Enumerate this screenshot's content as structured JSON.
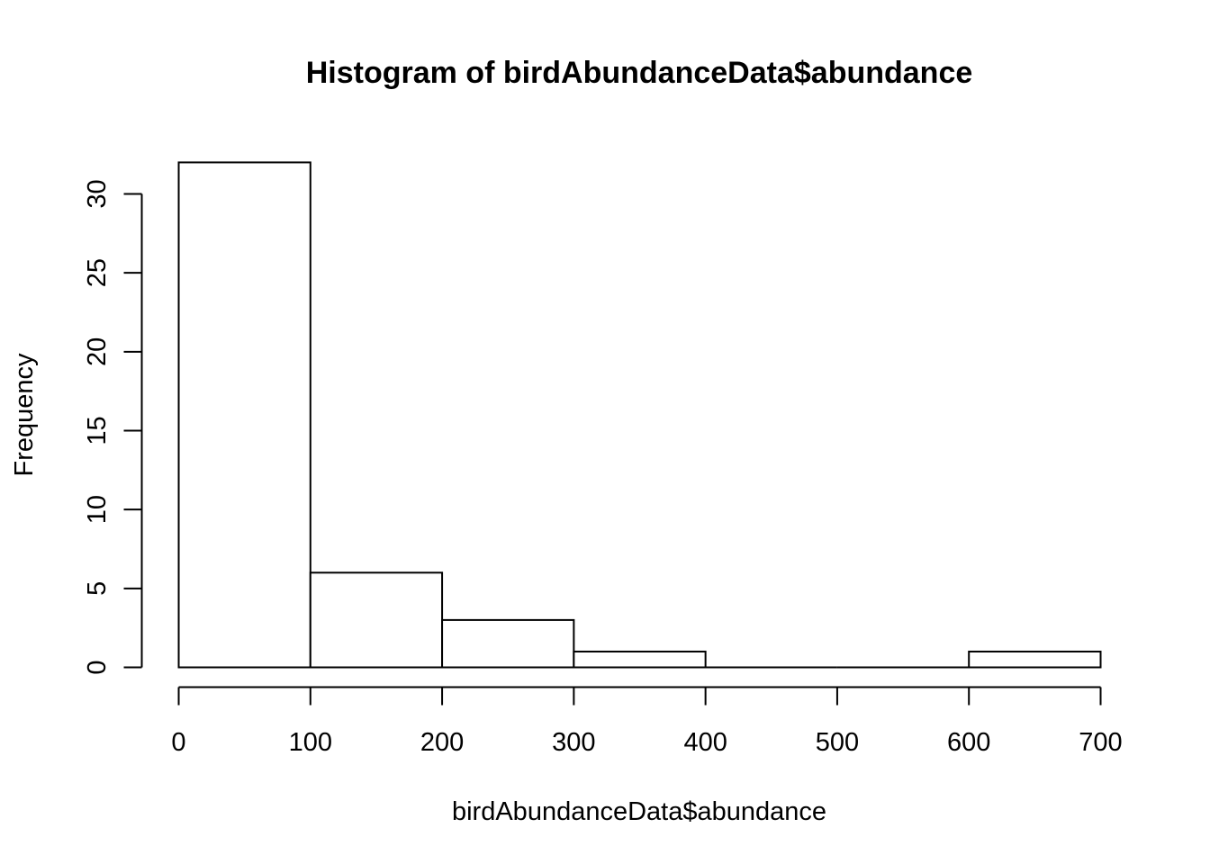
{
  "chart_data": {
    "type": "bar",
    "title": "Histogram of birdAbundanceData$abundance",
    "xlabel": "birdAbundanceData$abundance",
    "ylabel": "Frequency",
    "bins": [
      {
        "from": 0,
        "to": 100,
        "count": 32
      },
      {
        "from": 100,
        "to": 200,
        "count": 6
      },
      {
        "from": 200,
        "to": 300,
        "count": 3
      },
      {
        "from": 300,
        "to": 400,
        "count": 1
      },
      {
        "from": 400,
        "to": 500,
        "count": 0
      },
      {
        "from": 500,
        "to": 600,
        "count": 0
      },
      {
        "from": 600,
        "to": 700,
        "count": 1
      }
    ],
    "xlim": [
      0,
      700
    ],
    "ylim": [
      0,
      32
    ],
    "x_ticks": [
      0,
      100,
      200,
      300,
      400,
      500,
      600,
      700
    ],
    "y_ticks": [
      0,
      5,
      10,
      15,
      20,
      25,
      30
    ],
    "grid": false,
    "colors": {
      "bar_fill": "#ffffff",
      "bar_stroke": "#000000"
    }
  }
}
